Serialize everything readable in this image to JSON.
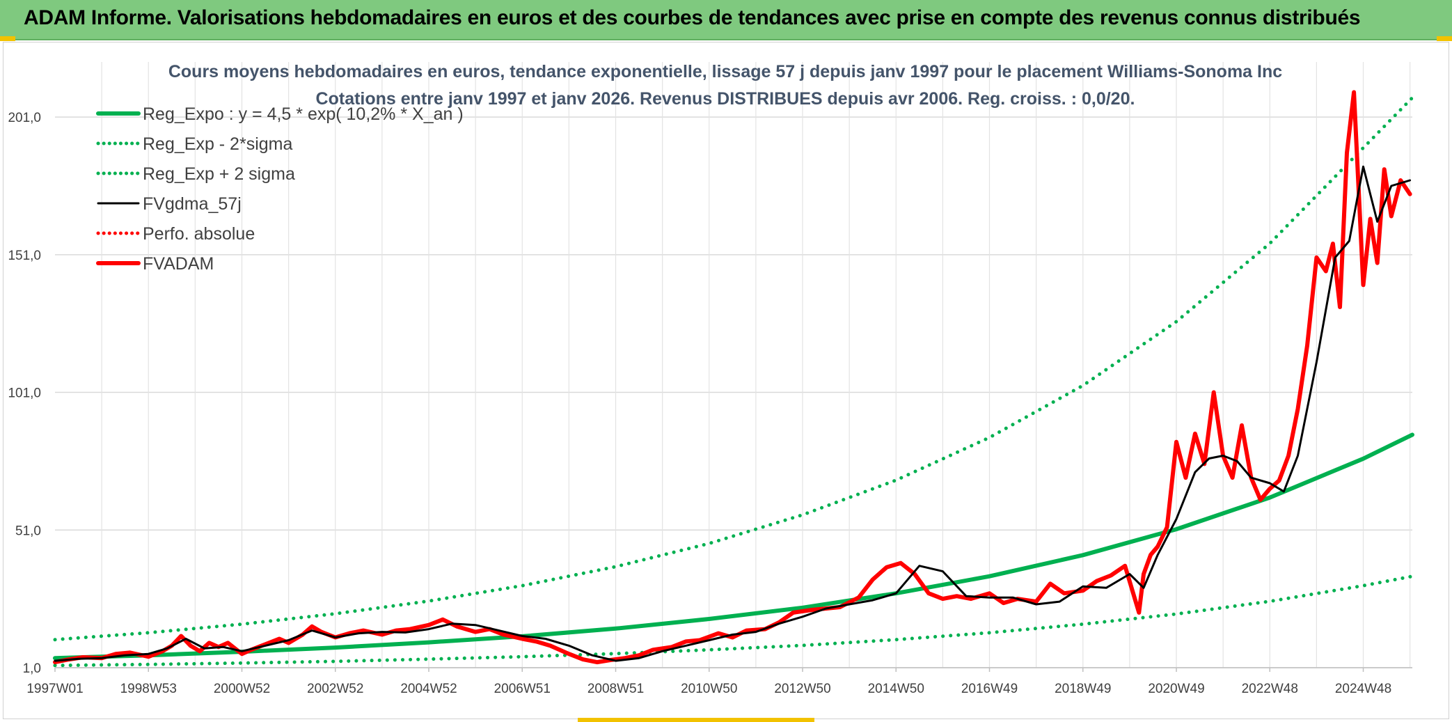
{
  "banner": {
    "title": "ADAM Informe. Valorisations hebdomadaires en euros et des courbes de tendances avec prise en compte des revenus connus distribués"
  },
  "chart_data": {
    "type": "line",
    "title": "Cours moyens hebdomadaires en euros, tendance exponentielle, lissage 57 j depuis janv 1997 pour le placement Williams-Sonoma Inc",
    "subtitle": "Cotations entre janv 1997 et janv 2026. Revenus DISTRIBUES depuis avr 2006. Reg. croiss. : 0,0/20.",
    "xlabel": "",
    "ylabel": "",
    "x_range": [
      1997.0,
      2026.05
    ],
    "ylim": [
      1.0,
      221.0
    ],
    "y_ticks": [
      1.0,
      51.0,
      101.0,
      151.0,
      201.0
    ],
    "y_tick_labels": [
      "1,0",
      "51,0",
      "101,0",
      "151,0",
      "201,0"
    ],
    "x_ticks": [
      {
        "pos": 1997.0,
        "label": "1997W01"
      },
      {
        "pos": 1999.0,
        "label": "1998W53"
      },
      {
        "pos": 2001.0,
        "label": "2000W52"
      },
      {
        "pos": 2003.0,
        "label": "2002W52"
      },
      {
        "pos": 2005.0,
        "label": "2004W52"
      },
      {
        "pos": 2007.0,
        "label": "2006W51"
      },
      {
        "pos": 2009.0,
        "label": "2008W51"
      },
      {
        "pos": 2011.0,
        "label": "2010W50"
      },
      {
        "pos": 2013.0,
        "label": "2012W50"
      },
      {
        "pos": 2015.0,
        "label": "2014W50"
      },
      {
        "pos": 2017.0,
        "label": "2016W49"
      },
      {
        "pos": 2019.0,
        "label": "2018W49"
      },
      {
        "pos": 2021.0,
        "label": "2020W49"
      },
      {
        "pos": 2023.0,
        "label": "2022W48"
      },
      {
        "pos": 2025.0,
        "label": "2024W48"
      }
    ],
    "grid": true,
    "legend_position": "top-left",
    "series": [
      {
        "name": "Reg_Expo : y = 4,5 * exp( 10,2% *  X_an )",
        "style": "solid-thick",
        "color": "#00b050",
        "x": [
          1997.0,
          1999.0,
          2001.0,
          2003.0,
          2005.0,
          2007.0,
          2009.0,
          2011.0,
          2013.0,
          2015.0,
          2017.0,
          2019.0,
          2021.0,
          2023.0,
          2025.0,
          2026.05
        ],
        "values": [
          4.5,
          5.5,
          6.8,
          8.3,
          10.2,
          12.4,
          15.2,
          18.7,
          22.8,
          28.0,
          34.2,
          41.9,
          51.3,
          62.8,
          76.9,
          85.6
        ]
      },
      {
        "name": "Reg_Exp - 2*sigma",
        "style": "dotted",
        "color": "#00b050",
        "x": [
          1997.0,
          1999.0,
          2001.0,
          2003.0,
          2005.0,
          2007.0,
          2009.0,
          2011.0,
          2013.0,
          2015.0,
          2017.0,
          2019.0,
          2021.0,
          2023.0,
          2025.0,
          2026.05
        ],
        "values": [
          1.8,
          2.2,
          2.7,
          3.3,
          4.1,
          5.0,
          6.1,
          7.5,
          9.1,
          11.2,
          13.7,
          16.8,
          20.5,
          25.1,
          30.8,
          34.2
        ]
      },
      {
        "name": "Reg_Exp + 2 sigma",
        "style": "dotted",
        "color": "#00b050",
        "x": [
          1997.0,
          1999.0,
          2001.0,
          2003.0,
          2005.0,
          2007.0,
          2009.0,
          2011.0,
          2013.0,
          2015.0,
          2017.0,
          2019.0,
          2021.0,
          2023.0,
          2025.0,
          2026.05
        ],
        "values": [
          11.2,
          13.7,
          16.8,
          20.6,
          25.2,
          30.8,
          37.7,
          46.1,
          56.5,
          69.1,
          84.6,
          103.5,
          126.7,
          155.1,
          189.8,
          208.0
        ]
      },
      {
        "name": "FVgdma_57j",
        "style": "solid",
        "color": "#000000",
        "x": [
          1997.0,
          1997.5,
          1998.0,
          1998.5,
          1999.0,
          1999.4,
          1999.8,
          2000.2,
          2000.6,
          2001.0,
          2001.5,
          2002.0,
          2002.5,
          2003.0,
          2003.5,
          2004.0,
          2004.5,
          2005.0,
          2005.5,
          2006.0,
          2006.5,
          2007.0,
          2007.5,
          2008.0,
          2008.5,
          2009.0,
          2009.5,
          2010.0,
          2010.5,
          2011.0,
          2011.5,
          2012.0,
          2012.5,
          2013.0,
          2013.5,
          2014.0,
          2014.5,
          2015.0,
          2015.5,
          2016.0,
          2016.5,
          2017.0,
          2017.5,
          2018.0,
          2018.5,
          2019.0,
          2019.5,
          2020.0,
          2020.3,
          2020.6,
          2021.0,
          2021.4,
          2021.7,
          2022.0,
          2022.3,
          2022.6,
          2023.0,
          2023.3,
          2023.6,
          2024.0,
          2024.4,
          2024.7,
          2025.0,
          2025.3,
          2025.6,
          2026.0
        ],
        "values": [
          3.5,
          4.2,
          4.5,
          5.5,
          6.0,
          8.0,
          11.5,
          8.0,
          8.5,
          7.0,
          9.0,
          11.0,
          14.5,
          12.0,
          13.5,
          14.0,
          13.8,
          15.0,
          17.0,
          16.5,
          14.5,
          12.5,
          11.5,
          9.0,
          5.5,
          3.5,
          4.5,
          7.0,
          9.0,
          11.0,
          13.0,
          14.0,
          17.0,
          19.5,
          22.5,
          24.0,
          25.5,
          28.0,
          38.0,
          36.0,
          27.0,
          26.5,
          26.5,
          24.0,
          25.0,
          30.5,
          30.0,
          35.0,
          30.0,
          42.0,
          55.0,
          72.0,
          77.0,
          78.0,
          76.0,
          70.0,
          68.0,
          65.0,
          78.0,
          112.0,
          150.0,
          156.0,
          183.0,
          163.0,
          176.0,
          178.0
        ]
      },
      {
        "name": "Perfo. absolue",
        "style": "dotted",
        "color": "#ff0000",
        "x": [],
        "values": []
      },
      {
        "name": "FVADAM",
        "style": "solid-thick",
        "color": "#ff0000",
        "x": [
          1997.0,
          1997.3,
          1997.6,
          1998.0,
          1998.3,
          1998.6,
          1999.0,
          1999.3,
          1999.5,
          1999.7,
          1999.9,
          2000.1,
          2000.3,
          2000.5,
          2000.7,
          2001.0,
          2001.2,
          2001.5,
          2001.8,
          2002.0,
          2002.3,
          2002.5,
          2002.7,
          2003.0,
          2003.3,
          2003.6,
          2004.0,
          2004.3,
          2004.6,
          2005.0,
          2005.3,
          2005.6,
          2006.0,
          2006.3,
          2006.6,
          2007.0,
          2007.3,
          2007.6,
          2008.0,
          2008.3,
          2008.6,
          2008.9,
          2009.2,
          2009.5,
          2009.8,
          2010.2,
          2010.5,
          2010.8,
          2011.2,
          2011.5,
          2011.8,
          2012.2,
          2012.5,
          2012.8,
          2013.2,
          2013.5,
          2013.8,
          2014.2,
          2014.5,
          2014.8,
          2015.1,
          2015.4,
          2015.7,
          2016.0,
          2016.3,
          2016.6,
          2017.0,
          2017.3,
          2017.6,
          2018.0,
          2018.3,
          2018.6,
          2019.0,
          2019.3,
          2019.6,
          2019.9,
          2020.2,
          2020.3,
          2020.45,
          2020.6,
          2020.8,
          2021.0,
          2021.2,
          2021.4,
          2021.6,
          2021.8,
          2022.0,
          2022.2,
          2022.4,
          2022.6,
          2022.8,
          2023.0,
          2023.2,
          2023.4,
          2023.6,
          2023.8,
          2024.0,
          2024.2,
          2024.35,
          2024.5,
          2024.65,
          2024.8,
          2025.0,
          2025.15,
          2025.3,
          2025.45,
          2025.6,
          2025.8,
          2026.0
        ],
        "values": [
          3.0,
          4.0,
          4.8,
          4.5,
          6.0,
          6.5,
          5.0,
          7.0,
          9.0,
          12.5,
          9.0,
          7.0,
          10.0,
          8.5,
          10.0,
          6.0,
          7.5,
          9.5,
          11.5,
          10.0,
          13.0,
          16.0,
          14.0,
          12.0,
          13.5,
          14.5,
          13.0,
          14.5,
          15.0,
          16.5,
          18.5,
          16.0,
          14.0,
          15.0,
          13.0,
          11.5,
          10.5,
          9.0,
          6.0,
          4.0,
          3.0,
          3.8,
          4.5,
          5.5,
          7.5,
          8.5,
          10.5,
          11.0,
          13.5,
          12.0,
          14.5,
          15.0,
          17.5,
          21.0,
          22.0,
          22.5,
          23.0,
          26.5,
          33.0,
          37.5,
          39.0,
          35.0,
          28.0,
          26.0,
          27.0,
          26.0,
          28.0,
          24.5,
          26.0,
          25.0,
          31.5,
          28.0,
          29.0,
          32.5,
          34.5,
          38.0,
          21.0,
          35.0,
          42.0,
          45.0,
          52.0,
          83.0,
          70.0,
          86.0,
          75.0,
          101.0,
          78.0,
          70.0,
          89.0,
          70.0,
          62.0,
          66.0,
          69.0,
          78.0,
          95.0,
          118.0,
          150.0,
          145.0,
          155.0,
          132.0,
          188.0,
          210.0,
          140.0,
          164.0,
          148.0,
          182.0,
          165.0,
          178.0,
          173.0
        ]
      }
    ]
  }
}
